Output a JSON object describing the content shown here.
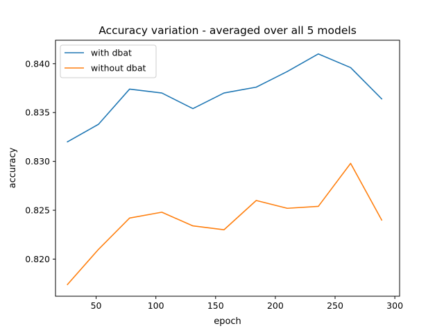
{
  "chart_data": {
    "type": "line",
    "title": "Accuracy variation - averaged over all 5 models",
    "xlabel": "epoch",
    "ylabel": "accuracy",
    "xlim": [
      16,
      304
    ],
    "ylim": [
      0.8162,
      0.8424
    ],
    "xticks": [
      50,
      100,
      150,
      200,
      250,
      300
    ],
    "yticks": [
      0.82,
      0.825,
      0.83,
      0.835,
      0.84
    ],
    "ytick_format": 3,
    "grid": false,
    "legend_position": "upper left",
    "x": [
      26,
      52,
      78,
      105,
      131,
      157,
      184,
      210,
      236,
      263,
      289
    ],
    "series": [
      {
        "name": "with dbat",
        "color": "#1f77b4",
        "values": [
          0.832,
          0.8338,
          0.8374,
          0.837,
          0.8354,
          0.837,
          0.8376,
          0.8392,
          0.841,
          0.8396,
          0.8364
        ]
      },
      {
        "name": "without dbat",
        "color": "#ff7f0e",
        "values": [
          0.8174,
          0.821,
          0.8242,
          0.8248,
          0.8234,
          0.823,
          0.826,
          0.8252,
          0.8254,
          0.8298,
          0.824
        ]
      }
    ]
  }
}
